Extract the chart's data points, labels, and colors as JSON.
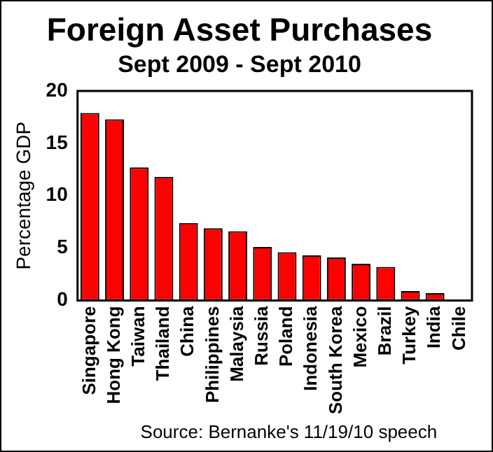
{
  "chart_data": {
    "type": "bar",
    "title": "Foreign Asset Purchases",
    "subtitle": "Sept 2009 - Sept 2010",
    "ylabel": "Percentage GDP",
    "categories": [
      "Singapore",
      "Hong Kong",
      "Taiwan",
      "Thailand",
      "China",
      "Philippines",
      "Malaysia",
      "Russia",
      "Poland",
      "Indonesia",
      "South Korea",
      "Mexico",
      "Brazil",
      "Turkey",
      "India",
      "Chile"
    ],
    "values": [
      17.9,
      17.3,
      12.7,
      11.8,
      7.4,
      6.9,
      6.6,
      5.1,
      4.6,
      4.3,
      4.1,
      3.5,
      3.2,
      0.9,
      0.7,
      0
    ],
    "color": "#ff0000",
    "ylim": [
      0,
      20
    ],
    "yticks": [
      0,
      5,
      10,
      15,
      20
    ],
    "grid": false,
    "legend": false,
    "annotations": [
      "Source: Bernanke's 11/19/10 speech"
    ]
  }
}
